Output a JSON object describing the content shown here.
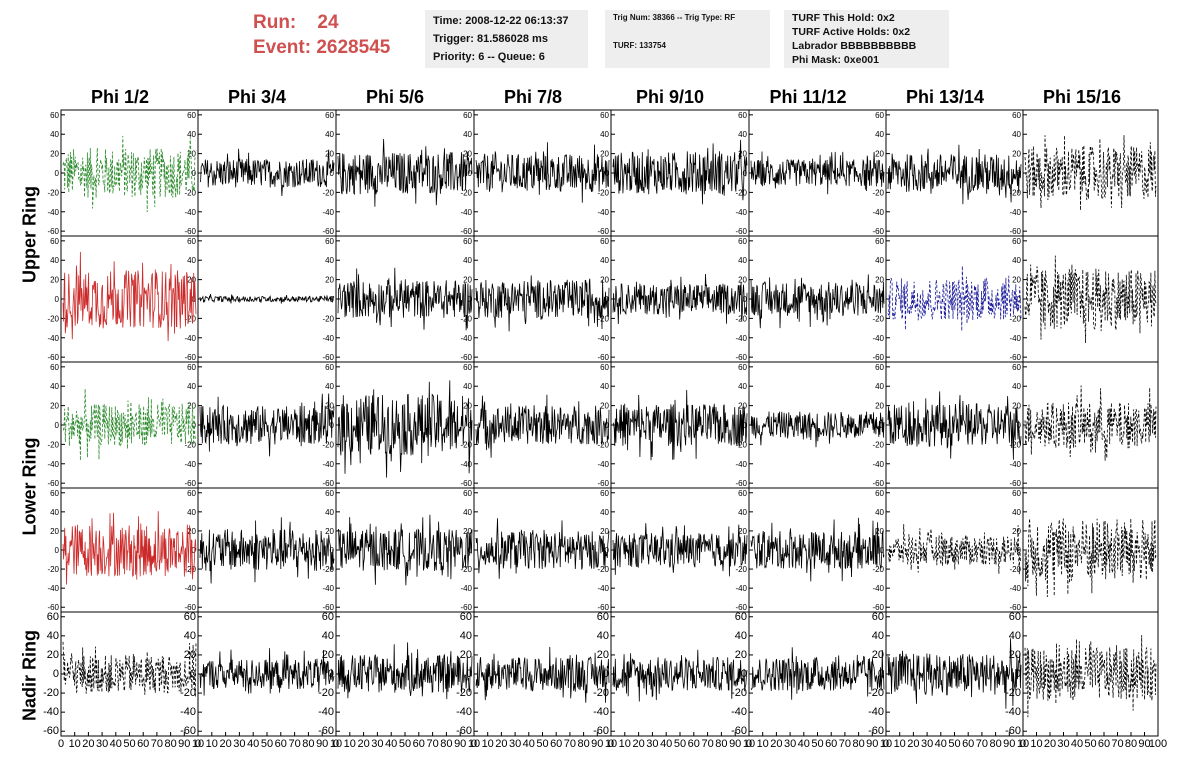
{
  "header": {
    "run_label": "Run:",
    "run_value": "24",
    "event_label": "Event:",
    "event_value": "2628545",
    "time": "Time: 2008-12-22 06:13:37",
    "trigger": "Trigger: 81.586028 ms",
    "priority": "Priority: 6 -- Queue: 6",
    "trig_num": "Trig Num: 38366 -- Trig Type: RF",
    "turf": "TURF: 133754",
    "turf_this_hold": "TURF This Hold: 0x2",
    "turf_active_holds": "TURF Active Holds: 0x2",
    "labrador": "Labrador BBBBBBBBBB",
    "phi_mask": "Phi Mask: 0xe001"
  },
  "columns": [
    "Phi 1/2",
    "Phi 3/4",
    "Phi 5/6",
    "Phi 7/8",
    "Phi 9/10",
    "Phi 11/12",
    "Phi 13/14",
    "Phi 15/16"
  ],
  "row_groups": [
    "Upper Ring",
    "Lower Ring",
    "Nadir Ring"
  ],
  "colors": {
    "waveform_default": "#000000",
    "waveform_green": "#2a8a2a",
    "waveform_red": "#cc2a2a",
    "waveform_blue": "#1a1a9a",
    "run_text": "#d05050",
    "info_bg": "#eeeeee"
  },
  "chart_data": {
    "type": "line",
    "grid": false,
    "ylim": [
      -65,
      65
    ],
    "xlim": [
      0,
      100
    ],
    "yticks": [
      "60",
      "40",
      "20",
      "0",
      "-20",
      "-40",
      "-60"
    ],
    "xticks_last_panel": [
      "0",
      "10",
      "20",
      "30",
      "40",
      "50",
      "60",
      "70",
      "80",
      "90",
      "100"
    ],
    "xticks_panel": [
      "0",
      "10",
      "20",
      "30",
      "40",
      "50",
      "60",
      "70",
      "80",
      "90",
      "10"
    ],
    "panels": [
      {
        "row": 0,
        "col": 0,
        "style": "green-dashed",
        "amp": 26
      },
      {
        "row": 0,
        "col": 1,
        "style": "black",
        "amp": 15
      },
      {
        "row": 0,
        "col": 2,
        "style": "black",
        "amp": 22
      },
      {
        "row": 0,
        "col": 3,
        "style": "black",
        "amp": 20
      },
      {
        "row": 0,
        "col": 4,
        "style": "black",
        "amp": 22
      },
      {
        "row": 0,
        "col": 5,
        "style": "black",
        "amp": 14
      },
      {
        "row": 0,
        "col": 6,
        "style": "black",
        "amp": 20
      },
      {
        "row": 0,
        "col": 7,
        "style": "black-dashed",
        "amp": 28
      },
      {
        "row": 1,
        "col": 0,
        "style": "red",
        "amp": 30
      },
      {
        "row": 1,
        "col": 1,
        "style": "black",
        "amp": 3
      },
      {
        "row": 1,
        "col": 2,
        "style": "black",
        "amp": 20
      },
      {
        "row": 1,
        "col": 3,
        "style": "black",
        "amp": 20
      },
      {
        "row": 1,
        "col": 4,
        "style": "black",
        "amp": 16
      },
      {
        "row": 1,
        "col": 5,
        "style": "black",
        "amp": 18
      },
      {
        "row": 1,
        "col": 6,
        "style": "blue-dashed",
        "amp": 22
      },
      {
        "row": 1,
        "col": 7,
        "style": "black-dashed",
        "amp": 32
      },
      {
        "row": 2,
        "col": 0,
        "style": "green-dashed",
        "amp": 22
      },
      {
        "row": 2,
        "col": 1,
        "style": "black",
        "amp": 20
      },
      {
        "row": 2,
        "col": 2,
        "style": "black",
        "amp": 32
      },
      {
        "row": 2,
        "col": 3,
        "style": "black",
        "amp": 20
      },
      {
        "row": 2,
        "col": 4,
        "style": "black",
        "amp": 22
      },
      {
        "row": 2,
        "col": 5,
        "style": "black",
        "amp": 14
      },
      {
        "row": 2,
        "col": 6,
        "style": "black",
        "amp": 22
      },
      {
        "row": 2,
        "col": 7,
        "style": "black-dashed",
        "amp": 24
      },
      {
        "row": 3,
        "col": 0,
        "style": "red",
        "amp": 28
      },
      {
        "row": 3,
        "col": 1,
        "style": "black",
        "amp": 22
      },
      {
        "row": 3,
        "col": 2,
        "style": "black",
        "amp": 22
      },
      {
        "row": 3,
        "col": 3,
        "style": "black",
        "amp": 20
      },
      {
        "row": 3,
        "col": 4,
        "style": "black",
        "amp": 18
      },
      {
        "row": 3,
        "col": 5,
        "style": "black",
        "amp": 20
      },
      {
        "row": 3,
        "col": 6,
        "style": "black-dashed",
        "amp": 16
      },
      {
        "row": 3,
        "col": 7,
        "style": "black-dashed",
        "amp": 34
      },
      {
        "row": 4,
        "col": 0,
        "style": "black-dashed",
        "amp": 20
      },
      {
        "row": 4,
        "col": 1,
        "style": "black",
        "amp": 16
      },
      {
        "row": 4,
        "col": 2,
        "style": "black",
        "amp": 20
      },
      {
        "row": 4,
        "col": 3,
        "style": "black",
        "amp": 18
      },
      {
        "row": 4,
        "col": 4,
        "style": "black",
        "amp": 18
      },
      {
        "row": 4,
        "col": 5,
        "style": "black",
        "amp": 18
      },
      {
        "row": 4,
        "col": 6,
        "style": "black",
        "amp": 22
      },
      {
        "row": 4,
        "col": 7,
        "style": "black-dashed",
        "amp": 28
      }
    ]
  }
}
